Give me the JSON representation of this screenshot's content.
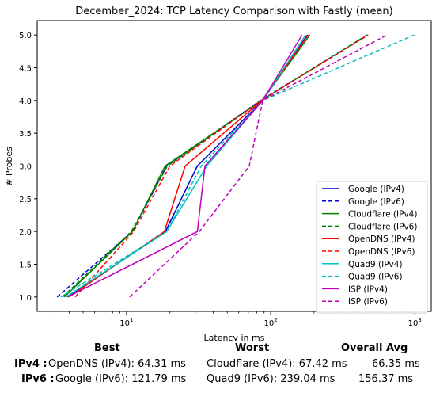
{
  "chart_data": {
    "type": "line",
    "title": "December_2024: TCP Latency Comparison with Fastly (mean)",
    "xlabel": "Latency in ms",
    "ylabel": "# Probes",
    "xscale": "log",
    "xlim": [
      2.4,
      1300
    ],
    "ylim": [
      0.78,
      5.22
    ],
    "xticks": [
      {
        "value": 10,
        "label": "10^1",
        "base": "10",
        "exp": "1"
      },
      {
        "value": 100,
        "label": "10^2",
        "base": "10",
        "exp": "2"
      },
      {
        "value": 1000,
        "label": "10^3",
        "base": "10",
        "exp": "3"
      }
    ],
    "yticks": [
      {
        "value": 1.0,
        "label": "1.0"
      },
      {
        "value": 1.5,
        "label": "1.5"
      },
      {
        "value": 2.0,
        "label": "2.0"
      },
      {
        "value": 2.5,
        "label": "2.5"
      },
      {
        "value": 3.0,
        "label": "3.0"
      },
      {
        "value": 3.5,
        "label": "3.5"
      },
      {
        "value": 4.0,
        "label": "4.0"
      },
      {
        "value": 4.5,
        "label": "4.5"
      },
      {
        "value": 5.0,
        "label": "5.0"
      }
    ],
    "legend_position": "lower-right",
    "grid": false,
    "series": [
      {
        "name": "Google (IPv4)",
        "color": "#0000cc",
        "dash": "solid",
        "x": [
          3.9,
          18.6,
          31.0,
          88.0,
          180.0
        ],
        "y": [
          1,
          2,
          3,
          4,
          5
        ]
      },
      {
        "name": "Google (IPv6)",
        "color": "#0000cc",
        "dash": "dashed",
        "x": [
          3.3,
          11.0,
          19.0,
          85.0,
          470.0
        ],
        "y": [
          1,
          2,
          3,
          4,
          5
        ]
      },
      {
        "name": "Cloudflare (IPv4)",
        "color": "#008000",
        "dash": "solid",
        "x": [
          3.7,
          11.0,
          18.5,
          87.0,
          187.0
        ],
        "y": [
          1,
          2,
          3,
          4,
          5
        ]
      },
      {
        "name": "Cloudflare (IPv6)",
        "color": "#008000",
        "dash": "dashed",
        "x": [
          3.6,
          10.8,
          19.2,
          86.0,
          465.0
        ],
        "y": [
          1,
          2,
          3,
          4,
          5
        ]
      },
      {
        "name": "OpenDNS (IPv4)",
        "color": "#ff0000",
        "dash": "solid",
        "x": [
          4.0,
          18.3,
          25.5,
          87.0,
          182.0
        ],
        "y": [
          1,
          2,
          3,
          4,
          5
        ]
      },
      {
        "name": "OpenDNS (IPv6)",
        "color": "#ff0000",
        "dash": "dashed",
        "x": [
          4.4,
          11.2,
          20.0,
          86.0,
          475.0
        ],
        "y": [
          1,
          2,
          3,
          4,
          5
        ]
      },
      {
        "name": "Quad9 (IPv4)",
        "color": "#00bfbf",
        "dash": "solid",
        "x": [
          3.8,
          19.0,
          36.0,
          88.0,
          175.0
        ],
        "y": [
          1,
          2,
          3,
          4,
          5
        ]
      },
      {
        "name": "Quad9 (IPv6)",
        "color": "#00bfbf",
        "dash": "dashed",
        "x": [
          3.5,
          19.0,
          33.0,
          88.0,
          990.0
        ],
        "y": [
          1,
          2,
          3,
          4,
          5
        ]
      },
      {
        "name": "ISP (IPv4)",
        "color": "#bf00bf",
        "dash": "solid",
        "x": [
          3.9,
          31.0,
          35.0,
          88.0,
          165.0
        ],
        "y": [
          1,
          2,
          3,
          4,
          5
        ]
      },
      {
        "name": "ISP (IPv6)",
        "color": "#bf00bf",
        "dash": "dashed",
        "x": [
          10.5,
          32.0,
          71.0,
          88.0,
          640.0
        ],
        "y": [
          1,
          2,
          3,
          4,
          5
        ]
      }
    ]
  },
  "summary": {
    "headers": {
      "best": "Best",
      "worst": "Worst",
      "avg": "Overall Avg"
    },
    "rows": [
      {
        "label": "IPv4 :",
        "best": "OpenDNS (IPv4): 64.31 ms",
        "worst": "Cloudflare (IPv4): 67.42 ms",
        "avg": "66.35 ms"
      },
      {
        "label": "IPv6 :",
        "best": "Google (IPv6): 121.79 ms",
        "worst": "Quad9 (IPv6): 239.04 ms",
        "avg": "156.37 ms"
      }
    ]
  }
}
